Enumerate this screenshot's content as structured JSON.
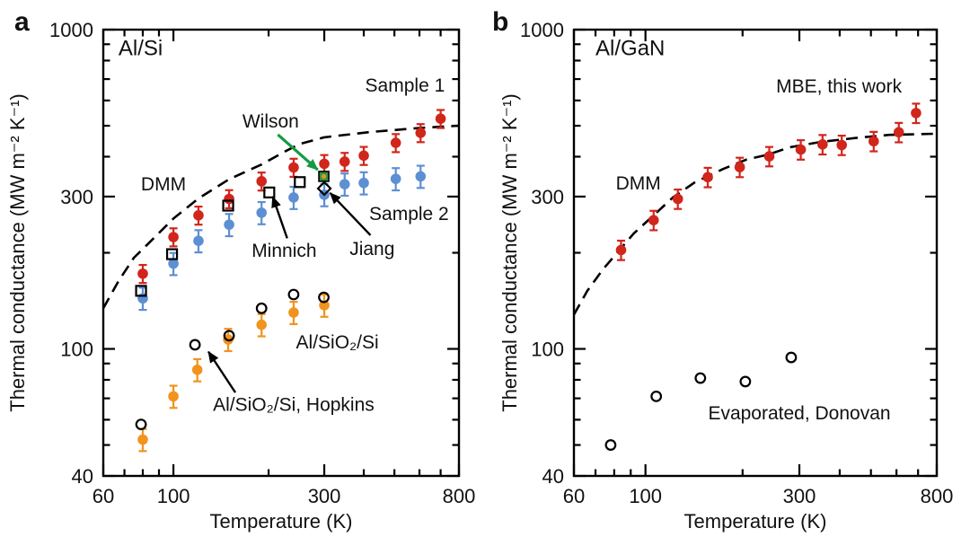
{
  "page": {
    "background": "#ffffff"
  },
  "colors": {
    "red": "#d1261b",
    "blue": "#5d8fd2",
    "orange": "#f0941e",
    "green": "#169a43",
    "black": "#000000"
  },
  "chart_data": [
    {
      "panel_letter": "a",
      "type": "scatter",
      "title": "Al/Si",
      "xlabel": "Temperature (K)",
      "ylabel": "Thermal conductance (MW m⁻² K⁻¹)",
      "xscale": "log",
      "yscale": "log",
      "xlim": [
        60,
        800
      ],
      "ylim": [
        40,
        1000
      ],
      "xticks": [
        60,
        100,
        300,
        800
      ],
      "xminorticks": [
        70,
        80,
        90,
        200,
        400,
        500,
        600,
        700
      ],
      "yticks": [
        40,
        100,
        300,
        1000
      ],
      "yminorticks": [
        50,
        60,
        70,
        80,
        90,
        200,
        400,
        500,
        600,
        700,
        800,
        900
      ],
      "legend_position": "annotated",
      "grid": false,
      "series": [
        {
          "name": "DMM",
          "kind": "line",
          "linestyle": "dashed",
          "color": "#000000",
          "points": [
            [
              60,
              134
            ],
            [
              67,
              163
            ],
            [
              75,
              193
            ],
            [
              85,
              218
            ],
            [
              100,
              256
            ],
            [
              120,
              296
            ],
            [
              150,
              340
            ],
            [
              190,
              378
            ],
            [
              225,
              415
            ],
            [
              250,
              438
            ],
            [
              300,
              460
            ],
            [
              420,
              478
            ],
            [
              600,
              492
            ],
            [
              800,
              500
            ]
          ]
        },
        {
          "name": "Sample 2",
          "kind": "scatter",
          "marker": "circle",
          "color": "#5d8fd2",
          "rel_err": 0.08,
          "points": [
            [
              80,
              144
            ],
            [
              100,
              185
            ],
            [
              120,
              218
            ],
            [
              150,
              245
            ],
            [
              190,
              267
            ],
            [
              240,
              298
            ],
            [
              300,
              304
            ],
            [
              348,
              328
            ],
            [
              400,
              331
            ],
            [
              505,
              341
            ],
            [
              605,
              347
            ]
          ]
        },
        {
          "name": "Sample 1",
          "kind": "scatter",
          "marker": "circle",
          "color": "#d1261b",
          "rel_err": 0.065,
          "points": [
            [
              80,
              172
            ],
            [
              100,
              224
            ],
            [
              120,
              262
            ],
            [
              150,
              295
            ],
            [
              190,
              335
            ],
            [
              240,
              370
            ],
            [
              300,
              380
            ],
            [
              348,
              386
            ],
            [
              400,
              403
            ],
            [
              505,
              442
            ],
            [
              605,
              475
            ],
            [
              700,
              526
            ]
          ]
        },
        {
          "name": "Al/SiO₂/Si",
          "kind": "scatter",
          "marker": "circle",
          "color": "#f0941e",
          "rel_err": 0.08,
          "points": [
            [
              80,
              52
            ],
            [
              100,
              71
            ],
            [
              119,
              86
            ],
            [
              149,
              107
            ],
            [
              190,
              119
            ],
            [
              240,
              130
            ],
            [
              300,
              137
            ]
          ]
        },
        {
          "name": "Minnich",
          "kind": "scatter",
          "marker": "open-square",
          "color": "#000000",
          "rel_err": 0,
          "points": [
            [
              79,
              152
            ],
            [
              99,
              198
            ],
            [
              149,
              281
            ],
            [
              201,
              309
            ],
            [
              251,
              333
            ]
          ]
        },
        {
          "name": "Al/SiO₂/Si, Hopkins",
          "kind": "scatter",
          "marker": "open-circle",
          "color": "#000000",
          "rel_err": 0,
          "points": [
            [
              79,
              58
            ],
            [
              117,
              103
            ],
            [
              150,
              110
            ],
            [
              190,
              134
            ],
            [
              240,
              148
            ],
            [
              299,
              145
            ]
          ]
        },
        {
          "name": "Wilson",
          "kind": "scatter",
          "marker": "green-square",
          "color": "#2e9440",
          "rel_err": 0,
          "points": [
            [
              299,
              347
            ]
          ]
        },
        {
          "name": "Jiang",
          "kind": "scatter",
          "marker": "open-diamond",
          "color": "#000000",
          "rel_err": 0,
          "points": [
            [
              300,
              318
            ]
          ]
        }
      ],
      "annotations": [
        {
          "name": "panel-title",
          "text": "Al/Si",
          "t": 67,
          "g": 870,
          "color": "#111111",
          "anchor": "start",
          "size": 24
        },
        {
          "name": "label-sample-1",
          "text": "Sample 1",
          "t": 540,
          "g": 670,
          "color": "#d1261b",
          "anchor": "middle",
          "size": 21
        },
        {
          "name": "label-wilson",
          "text": "Wilson",
          "t": 203,
          "g": 517,
          "color": "#169a43",
          "anchor": "middle",
          "size": 21
        },
        {
          "name": "label-dmm",
          "text": "DMM",
          "t": 93,
          "g": 328,
          "color": "#111111",
          "anchor": "middle",
          "size": 21
        },
        {
          "name": "label-sample-2",
          "text": "Sample 2",
          "t": 556,
          "g": 265,
          "color": "#5d8fd2",
          "anchor": "middle",
          "size": 21
        },
        {
          "name": "label-minnich",
          "text": "Minnich",
          "t": 224,
          "g": 203,
          "color": "#111111",
          "anchor": "middle",
          "size": 21
        },
        {
          "name": "label-jiang",
          "text": "Jiang",
          "t": 425,
          "g": 206,
          "color": "#111111",
          "anchor": "middle",
          "size": 21
        },
        {
          "name": "label-al-sio2-si",
          "text": "Al/SiO₂/Si",
          "t": 330,
          "g": 105,
          "color": "#f0941e",
          "anchor": "middle",
          "size": 21
        },
        {
          "name": "label-hopkins",
          "text": "Al/SiO₂/Si, Hopkins",
          "t": 240,
          "g": 67,
          "color": "#111111",
          "anchor": "middle",
          "size": 21
        }
      ],
      "arrows": [
        {
          "name": "arrow-wilson",
          "color": "#169a43",
          "width": 3.2,
          "from": [
            214,
            469
          ],
          "to": [
            286,
            364
          ]
        },
        {
          "name": "arrow-minnich",
          "color": "#000000",
          "width": 2.4,
          "from": [
            229,
            222
          ],
          "to": [
            206,
            300
          ]
        },
        {
          "name": "arrow-jiang",
          "color": "#000000",
          "width": 2.4,
          "from": [
            420,
            227
          ],
          "to": [
            313,
            308
          ]
        },
        {
          "name": "arrow-hopkins",
          "color": "#000000",
          "width": 2.4,
          "from": [
            157,
            73
          ],
          "to": [
            129,
            98
          ]
        }
      ]
    },
    {
      "panel_letter": "b",
      "type": "scatter",
      "title": "Al/GaN",
      "xlabel": "Temperature (K)",
      "ylabel": "Thermal conductance (MW m⁻² K⁻¹)",
      "xscale": "log",
      "yscale": "log",
      "xlim": [
        60,
        800
      ],
      "ylim": [
        40,
        1000
      ],
      "xticks": [
        60,
        100,
        300,
        800
      ],
      "xminorticks": [
        70,
        80,
        90,
        200,
        400,
        500,
        600,
        700
      ],
      "yticks": [
        40,
        100,
        300,
        1000
      ],
      "yminorticks": [
        50,
        60,
        70,
        80,
        90,
        200,
        400,
        500,
        600,
        700,
        800,
        900
      ],
      "legend_position": "annotated",
      "grid": false,
      "series": [
        {
          "name": "DMM",
          "kind": "line",
          "linestyle": "dashed",
          "color": "#000000",
          "points": [
            [
              60,
              128
            ],
            [
              66,
              152
            ],
            [
              74,
              178
            ],
            [
              92,
              230
            ],
            [
              106,
              262
            ],
            [
              122,
              299
            ],
            [
              142,
              332
            ],
            [
              174,
              366
            ],
            [
              206,
              392
            ],
            [
              240,
              406
            ],
            [
              280,
              428
            ],
            [
              350,
              445
            ],
            [
              450,
              458
            ],
            [
              570,
              468
            ],
            [
              800,
              472
            ]
          ]
        },
        {
          "name": "MBE, this work",
          "kind": "scatter",
          "marker": "circle",
          "color": "#d1261b",
          "rel_err": 0.07,
          "points": [
            [
              84,
              204
            ],
            [
              106,
              253
            ],
            [
              126,
              295
            ],
            [
              156,
              345
            ],
            [
              196,
              371
            ],
            [
              242,
              401
            ],
            [
              303,
              421
            ],
            [
              354,
              437
            ],
            [
              406,
              435
            ],
            [
              510,
              447
            ],
            [
              610,
              477
            ],
            [
              690,
              548
            ]
          ]
        },
        {
          "name": "Evaporated, Donovan",
          "kind": "scatter",
          "marker": "open-circle",
          "color": "#000000",
          "rel_err": 0,
          "points": [
            [
              78,
              50
            ],
            [
              108,
              71
            ],
            [
              148,
              81
            ],
            [
              204,
              79
            ],
            [
              283,
              94
            ]
          ]
        }
      ],
      "annotations": [
        {
          "name": "panel-title",
          "text": "Al/GaN",
          "t": 70,
          "g": 870,
          "color": "#111111",
          "anchor": "start",
          "size": 24
        },
        {
          "name": "label-mbe",
          "text": "MBE, this work",
          "t": 398,
          "g": 665,
          "color": "#d1261b",
          "anchor": "middle",
          "size": 21
        },
        {
          "name": "label-dmm",
          "text": "DMM",
          "t": 95,
          "g": 330,
          "color": "#111111",
          "anchor": "middle",
          "size": 21
        },
        {
          "name": "label-donovan",
          "text": "Evaporated, Donovan",
          "t": 300,
          "g": 63,
          "color": "#111111",
          "anchor": "middle",
          "size": 21
        }
      ],
      "arrows": []
    }
  ]
}
